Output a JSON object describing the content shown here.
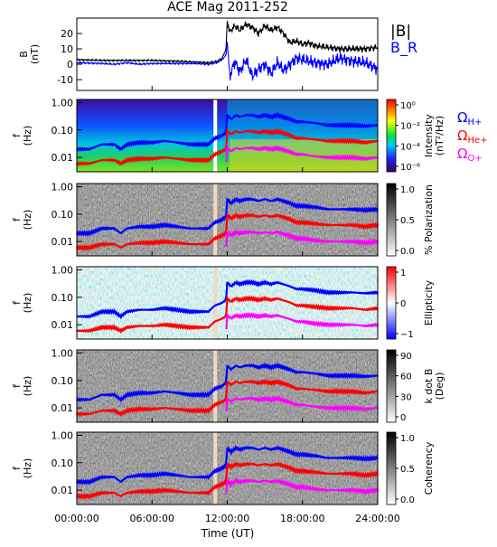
{
  "chart_data": [
    {
      "type": "line",
      "title": "ACE Mag 2011-252",
      "ylabel": "B\n(nT)",
      "ylim": [
        -17,
        30
      ],
      "y_ticks": [
        "-10",
        "0",
        "10",
        "20"
      ],
      "x_range_hours": [
        0,
        24
      ],
      "grid": false,
      "legend": "right",
      "series": [
        {
          "name": "|B|",
          "color": "#000000",
          "x": [
            0,
            2,
            4,
            6,
            8,
            9.5,
            10.5,
            11.2,
            11.6,
            11.9,
            12.0,
            12.2,
            12.6,
            13,
            13.5,
            14,
            14.5,
            15,
            15.5,
            16,
            16.5,
            17,
            17.5,
            18,
            18.5,
            19,
            20,
            21,
            22,
            23,
            24
          ],
          "y": [
            3,
            2.5,
            2.5,
            2.5,
            2,
            1.5,
            1,
            2,
            4,
            10,
            28,
            21,
            25,
            22,
            26,
            24,
            20,
            25,
            22,
            24,
            20,
            14,
            15,
            13,
            14,
            12,
            11,
            10,
            10,
            10,
            11
          ]
        },
        {
          "name": "B_R",
          "color": "#0000ff",
          "x": [
            0,
            2,
            3,
            4,
            5,
            6,
            8,
            9.5,
            10.5,
            11.2,
            11.6,
            11.9,
            12.0,
            12.2,
            12.6,
            13,
            13.5,
            14,
            14.5,
            15,
            15.5,
            16,
            16.5,
            17,
            17.5,
            18,
            19,
            20,
            21,
            22,
            23,
            24
          ],
          "y": [
            1,
            0.5,
            0,
            1,
            0,
            0.5,
            0.5,
            0.5,
            0,
            1,
            3,
            6,
            15,
            -8,
            2,
            -5,
            3,
            -8,
            -3,
            0,
            -6,
            1,
            -4,
            0,
            4,
            3,
            1,
            0,
            4,
            2,
            1,
            -3
          ]
        }
      ]
    },
    {
      "type": "heatmap",
      "ylabel": "f\n(Hz)",
      "y_scale": "log",
      "y_ticks": [
        "1.00",
        "0.10",
        "0.01"
      ],
      "colorbar_label": "Intensity\n(nT²/Hz)",
      "colorbar_ticks": [
        "10⁰",
        "10⁻²",
        "10⁻⁴",
        "10⁻⁶"
      ],
      "legend_entries": [
        "ΩH+",
        "ΩHe+",
        "ΩO+"
      ]
    },
    {
      "type": "heatmap",
      "ylabel": "f\n(Hz)",
      "y_scale": "log",
      "y_ticks": [
        "1.00",
        "0.10",
        "0.01"
      ],
      "colorbar_label": "% Polarization",
      "colorbar_ticks": [
        "1.0",
        "0.5",
        "0.0"
      ]
    },
    {
      "type": "heatmap",
      "ylabel": "f\n(Hz)",
      "y_scale": "log",
      "y_ticks": [
        "1.00",
        "0.10",
        "0.01"
      ],
      "colorbar_label": "Ellipticity",
      "colorbar_ticks": [
        "1",
        "0",
        "−1"
      ]
    },
    {
      "type": "heatmap",
      "ylabel": "f\n(Hz)",
      "y_scale": "log",
      "y_ticks": [
        "1.00",
        "0.10",
        "0.01"
      ],
      "colorbar_label": "k dot B\n(Deg)",
      "colorbar_ticks": [
        "90",
        "60",
        "30",
        "0"
      ]
    },
    {
      "type": "heatmap",
      "ylabel": "f\n(Hz)",
      "y_scale": "log",
      "y_ticks": [
        "1.00",
        "0.10",
        "0.01"
      ],
      "colorbar_label": "Coherency",
      "colorbar_ticks": [
        "1.0",
        "0.5",
        "0.0"
      ],
      "x_ticks": [
        "00:00:00",
        "06:00:00",
        "12:00:00",
        "18:00:00",
        "24:00:00"
      ],
      "xlabel": "Time (UT)"
    }
  ],
  "gyrofrequency_curves": {
    "x_hours": [
      0,
      1,
      2,
      3,
      3.5,
      4,
      5,
      6,
      7,
      8,
      9,
      10,
      10.5,
      11,
      11.5,
      11.9,
      12.0,
      12.3,
      12.7,
      13,
      13.5,
      14,
      14.5,
      15,
      15.5,
      16,
      17,
      17.5,
      18,
      19,
      20,
      21,
      22,
      23,
      24
    ],
    "H+": [
      0.02,
      0.02,
      0.03,
      0.03,
      0.02,
      0.03,
      0.035,
      0.035,
      0.04,
      0.035,
      0.03,
      0.03,
      0.03,
      0.05,
      0.06,
      0.08,
      0.35,
      0.25,
      0.35,
      0.3,
      0.35,
      0.35,
      0.3,
      0.35,
      0.3,
      0.35,
      0.25,
      0.2,
      0.2,
      0.18,
      0.15,
      0.15,
      0.15,
      0.14,
      0.15
    ],
    "He+": [
      0.006,
      0.006,
      0.008,
      0.008,
      0.006,
      0.008,
      0.009,
      0.009,
      0.01,
      0.009,
      0.008,
      0.008,
      0.008,
      0.013,
      0.016,
      0.02,
      0.09,
      0.07,
      0.09,
      0.08,
      0.09,
      0.09,
      0.08,
      0.09,
      0.08,
      0.09,
      0.065,
      0.05,
      0.05,
      0.045,
      0.04,
      0.04,
      0.04,
      0.035,
      0.04
    ],
    "O+": [
      null,
      null,
      null,
      null,
      null,
      null,
      null,
      null,
      null,
      null,
      null,
      null,
      null,
      null,
      null,
      0.005,
      0.022,
      0.017,
      0.022,
      0.02,
      0.022,
      0.022,
      0.02,
      0.022,
      0.02,
      0.022,
      0.016,
      0.013,
      0.013,
      0.011,
      0.01,
      0.01,
      0.01,
      0.009,
      0.01
    ],
    "colors": {
      "H+": "#0000ff",
      "He+": "#ff0000",
      "O+": "#ff00ff"
    }
  }
}
